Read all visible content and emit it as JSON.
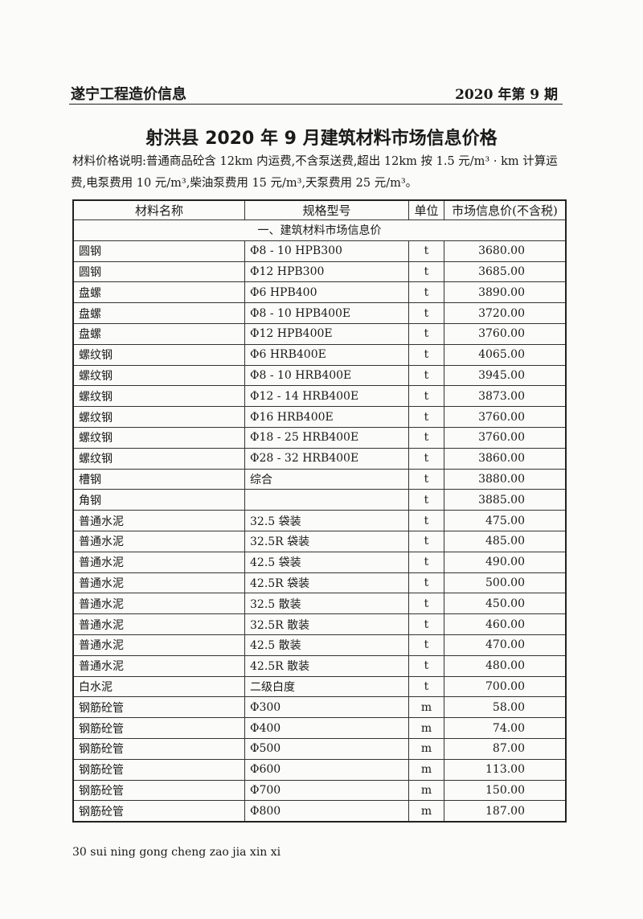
{
  "header": {
    "publication": "遂宁工程造价信息",
    "issue": "2020 年第 9 期"
  },
  "title": "射洪县 2020 年 9 月建筑材料市场信息价格",
  "description": "材料价格说明:普通商品砼含 12km 内运费,不含泵送费,超出 12km 按 1.5 元/m³ · km 计算运费,电泵费用 10 元/m³,柴油泵费用 15 元/m³,天泵费用 25 元/m³。",
  "table": {
    "columns": [
      "材料名称",
      "规格型号",
      "单位",
      "市场信息价(不含税)"
    ],
    "section": "一、建筑材料市场信息价",
    "rows": [
      [
        "圆钢",
        "Φ8 - 10 HPB300",
        "t",
        "3680.00"
      ],
      [
        "圆钢",
        "Φ12 HPB300",
        "t",
        "3685.00"
      ],
      [
        "盘螺",
        "Φ6 HPB400",
        "t",
        "3890.00"
      ],
      [
        "盘螺",
        "Φ8 - 10 HPB400E",
        "t",
        "3720.00"
      ],
      [
        "盘螺",
        "Φ12 HPB400E",
        "t",
        "3760.00"
      ],
      [
        "螺纹钢",
        "Φ6 HRB400E",
        "t",
        "4065.00"
      ],
      [
        "螺纹钢",
        "Φ8 - 10 HRB400E",
        "t",
        "3945.00"
      ],
      [
        "螺纹钢",
        "Φ12 - 14 HRB400E",
        "t",
        "3873.00"
      ],
      [
        "螺纹钢",
        "Φ16 HRB400E",
        "t",
        "3760.00"
      ],
      [
        "螺纹钢",
        "Φ18 - 25 HRB400E",
        "t",
        "3760.00"
      ],
      [
        "螺纹钢",
        "Φ28 - 32 HRB400E",
        "t",
        "3860.00"
      ],
      [
        "槽钢",
        "综合",
        "t",
        "3880.00"
      ],
      [
        "角钢",
        "",
        "t",
        "3885.00"
      ],
      [
        "普通水泥",
        "32.5 袋装",
        "t",
        "475.00"
      ],
      [
        "普通水泥",
        "32.5R 袋装",
        "t",
        "485.00"
      ],
      [
        "普通水泥",
        "42.5 袋装",
        "t",
        "490.00"
      ],
      [
        "普通水泥",
        "42.5R 袋装",
        "t",
        "500.00"
      ],
      [
        "普通水泥",
        "32.5 散装",
        "t",
        "450.00"
      ],
      [
        "普通水泥",
        "32.5R 散装",
        "t",
        "460.00"
      ],
      [
        "普通水泥",
        "42.5 散装",
        "t",
        "470.00"
      ],
      [
        "普通水泥",
        "42.5R 散装",
        "t",
        "480.00"
      ],
      [
        "白水泥",
        "二级白度",
        "t",
        "700.00"
      ],
      [
        "钢筋砼管",
        "Φ300",
        "m",
        "58.00"
      ],
      [
        "钢筋砼管",
        "Φ400",
        "m",
        "74.00"
      ],
      [
        "钢筋砼管",
        "Φ500",
        "m",
        "87.00"
      ],
      [
        "钢筋砼管",
        "Φ600",
        "m",
        "113.00"
      ],
      [
        "钢筋砼管",
        "Φ700",
        "m",
        "150.00"
      ],
      [
        "钢筋砼管",
        "Φ800",
        "m",
        "187.00"
      ]
    ]
  },
  "footer": "30 sui ning gong cheng zao jia xin xi"
}
